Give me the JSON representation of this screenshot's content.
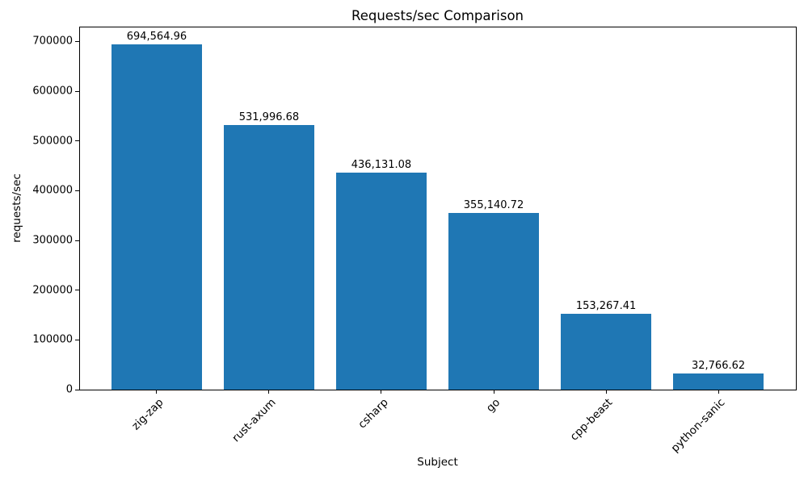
{
  "chart_data": {
    "type": "bar",
    "title": "Requests/sec Comparison",
    "xlabel": "Subject",
    "ylabel": "requests/sec",
    "categories": [
      "zig-zap",
      "rust-axum",
      "csharp",
      "go",
      "cpp-beast",
      "python-sanic"
    ],
    "values": [
      694564.96,
      531996.68,
      436131.08,
      355140.72,
      153267.41,
      32766.62
    ],
    "value_labels": [
      "694,564.96",
      "531,996.68",
      "436,131.08",
      "355,140.72",
      "153,267.41",
      "32,766.62"
    ],
    "yticks": [
      0,
      100000,
      200000,
      300000,
      400000,
      500000,
      600000,
      700000
    ],
    "ytick_labels": [
      "0",
      "100000",
      "200000",
      "300000",
      "400000",
      "500000",
      "600000",
      "700000"
    ],
    "ylim": [
      0,
      730000
    ],
    "bar_color": "#1f77b4",
    "grid": false,
    "legend_position": "none"
  }
}
